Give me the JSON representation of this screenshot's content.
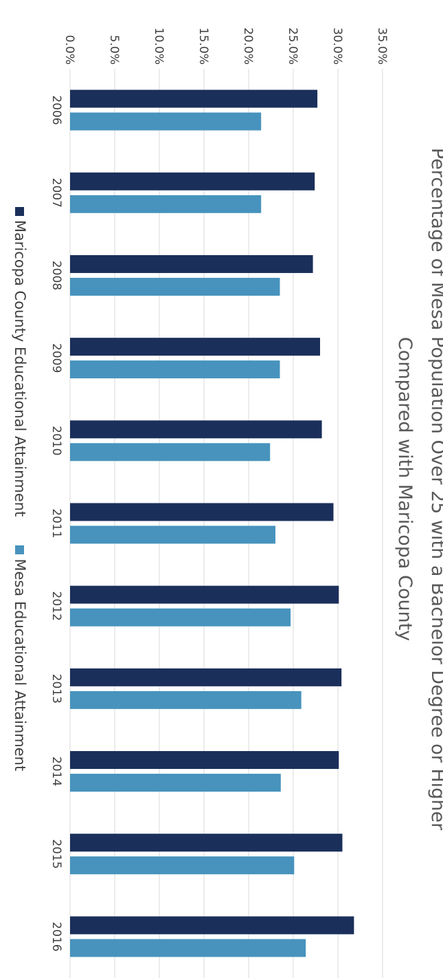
{
  "chart_data": {
    "type": "bar",
    "title_line1": "Percentage of Mesa Population Over 25 with a Bachelor Degree or Higher",
    "title_line2": "Compared with Maricopa County",
    "categories": [
      "2006",
      "2007",
      "2008",
      "2009",
      "2010",
      "2011",
      "2012",
      "2013",
      "2014",
      "2015",
      "2016"
    ],
    "series": [
      {
        "name": "Maricopa County Educational Attainment",
        "color": "#1b2f5b",
        "values": [
          27.7,
          27.4,
          27.2,
          28.0,
          28.2,
          29.5,
          30.1,
          30.4,
          30.1,
          30.5,
          31.8
        ]
      },
      {
        "name": "Mesa Educational Attainment",
        "color": "#4793bd",
        "values": [
          21.4,
          21.4,
          23.5,
          23.5,
          22.4,
          23.0,
          24.7,
          25.9,
          23.6,
          25.1,
          26.4
        ]
      }
    ],
    "y_ticks": [
      "0.0%",
      "5.0%",
      "10.0%",
      "15.0%",
      "20.0%",
      "25.0%",
      "30.0%",
      "35.0%"
    ],
    "ylim": [
      0,
      35
    ],
    "grid": true,
    "legend_position": "bottom",
    "xlabel": "",
    "ylabel": ""
  }
}
